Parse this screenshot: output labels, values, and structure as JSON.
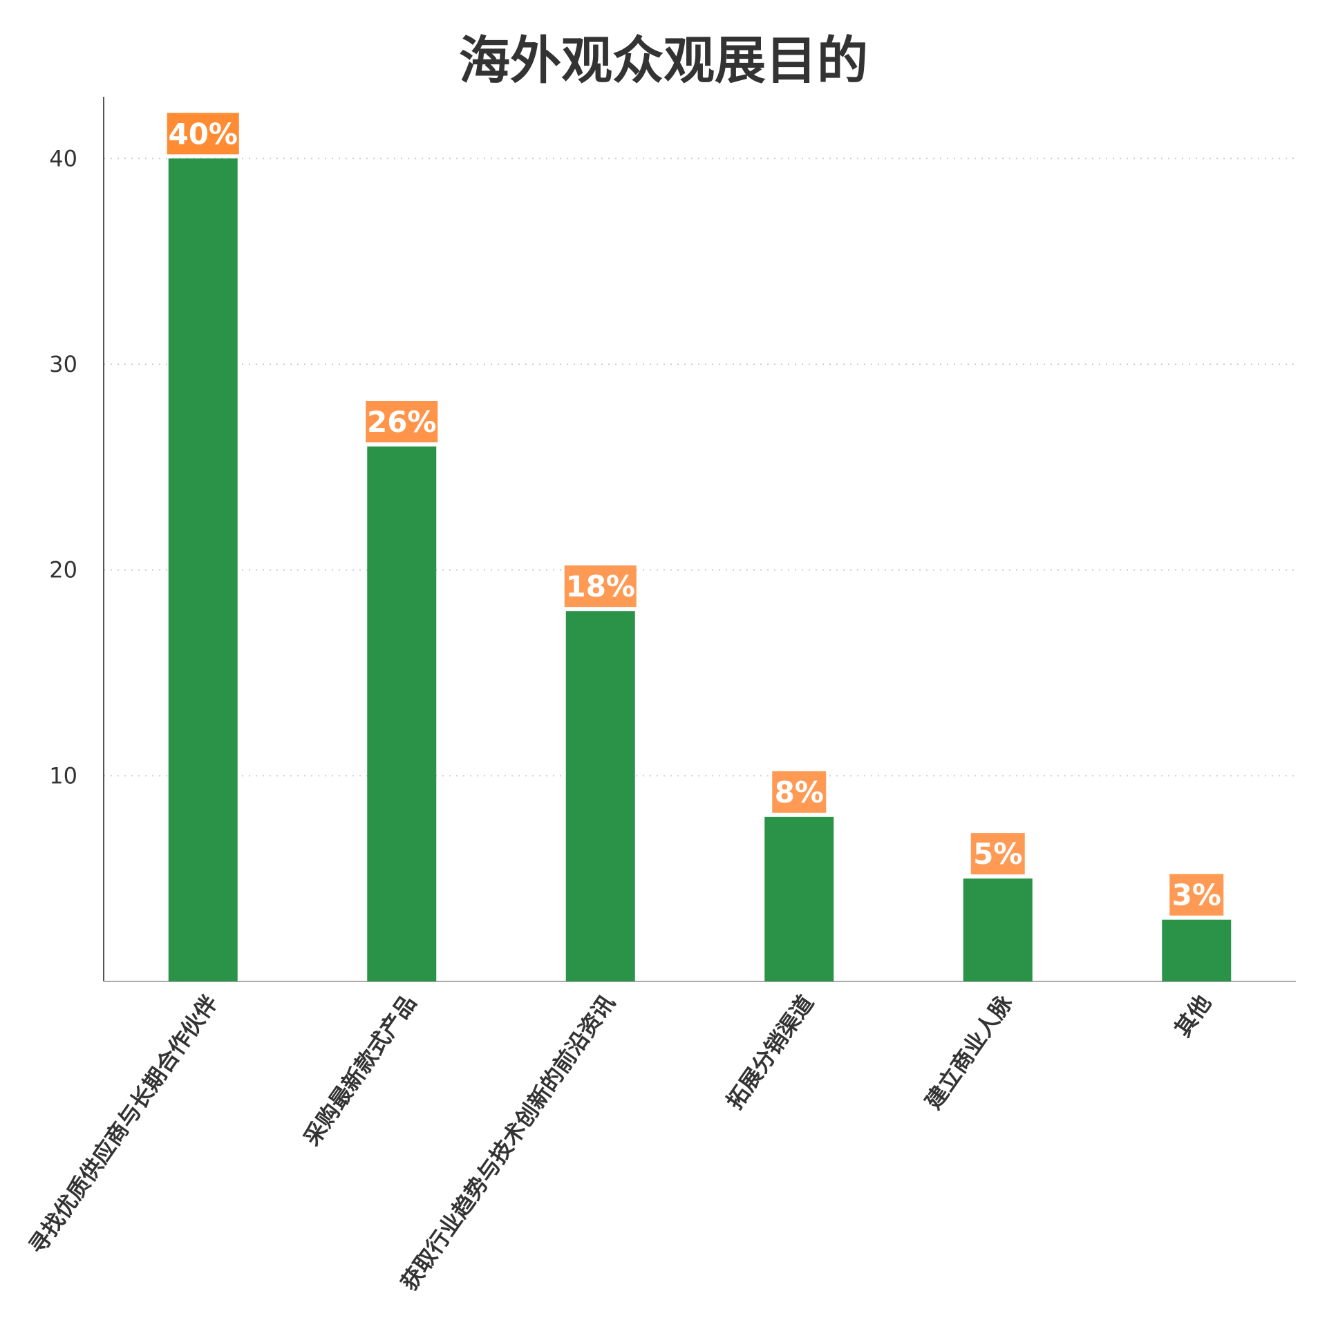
{
  "chart_data": {
    "type": "bar",
    "title": "海外观众观展目的",
    "xlabel": "",
    "ylabel": "",
    "categories": [
      "寻找优质供应商与长期合作伙伴",
      "采购最新款式产品",
      "获取行业趋势与技术创新的前沿资讯",
      "拓展分销渠道",
      "建立商业人脉",
      "其他"
    ],
    "values": [
      40,
      26,
      18,
      8,
      5,
      3
    ],
    "data_labels": [
      "40%",
      "26%",
      "18%",
      "8%",
      "5%",
      "3%"
    ],
    "ylim": [
      0,
      43
    ],
    "yticks": [
      10,
      20,
      30,
      40
    ],
    "ytick_labels": [
      "10",
      "20",
      "30",
      "40"
    ],
    "grid": "horizontal dotted",
    "colors": {
      "bar": "#2a9348",
      "label_box": [
        "#ff8c33",
        "#ff944a",
        "#ff9a55",
        "#ff9a55",
        "#ff9a55",
        "#ff9a55"
      ],
      "axis": "#555555",
      "grid": "#cccccc"
    }
  }
}
